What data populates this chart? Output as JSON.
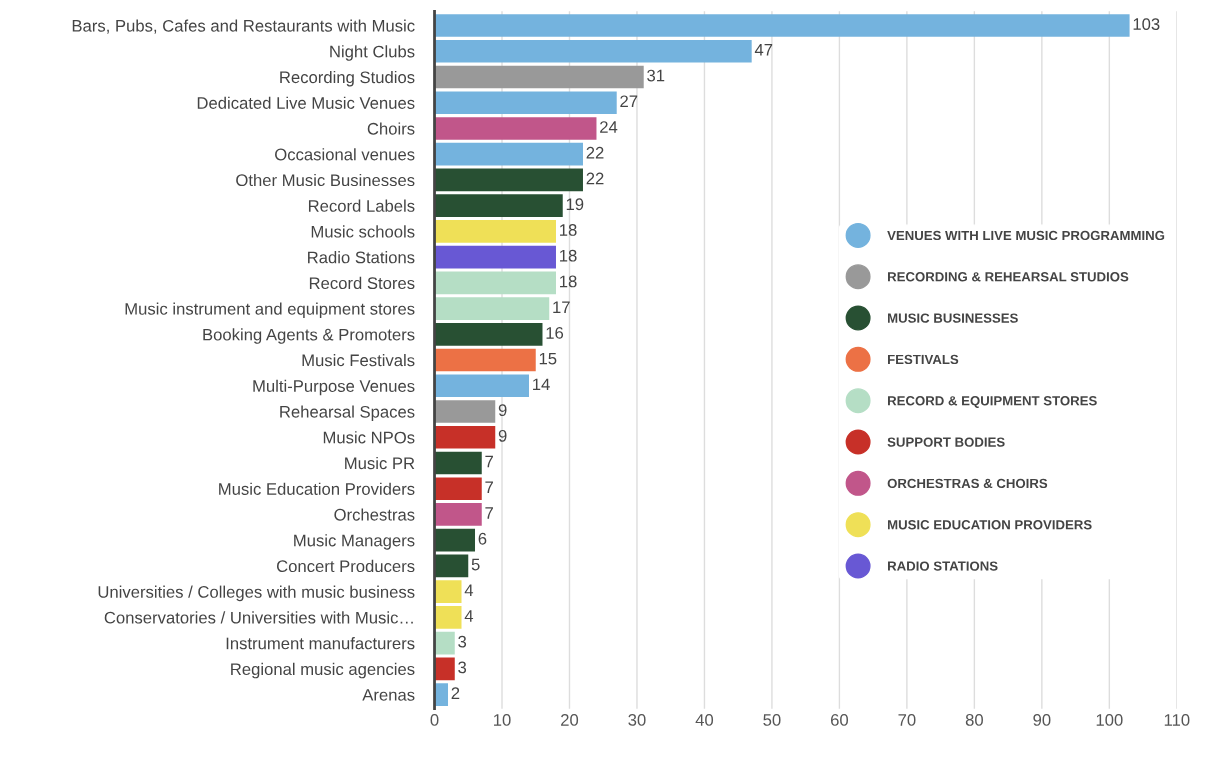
{
  "chart_data": {
    "type": "bar",
    "orientation": "horizontal",
    "categories": [
      "Bars, Pubs, Cafes and Restaurants with Music",
      "Night Clubs",
      "Recording Studios",
      "Dedicated Live Music Venues",
      "Choirs",
      "Occasional venues",
      "Other Music Businesses",
      "Record Labels",
      "Music schools",
      "Radio Stations",
      "Record Stores",
      "Music instrument and equipment stores",
      "Booking Agents & Promoters",
      "Music Festivals",
      "Multi-Purpose Venues",
      "Rehearsal Spaces",
      "Music NPOs",
      "Music PR",
      "Music Education Providers",
      "Orchestras",
      "Music Managers",
      "Concert Producers",
      "Universities / Colleges with music business",
      "Conservatories / Universities with Music…",
      "Instrument manufacturers",
      "Regional music agencies",
      "Arenas"
    ],
    "series": [
      {
        "name": "VENUES WITH LIVE MUSIC PROGRAMMING",
        "color": "#74b3de",
        "values": [
          103,
          47,
          null,
          27,
          null,
          22,
          null,
          null,
          null,
          null,
          null,
          null,
          null,
          null,
          14,
          null,
          null,
          null,
          null,
          null,
          null,
          null,
          null,
          null,
          null,
          null,
          2
        ]
      },
      {
        "name": "RECORDING & REHEARSAL STUDIOS",
        "color": "#999999",
        "values": [
          null,
          null,
          31,
          null,
          null,
          null,
          null,
          null,
          null,
          null,
          null,
          null,
          null,
          null,
          null,
          9,
          null,
          null,
          null,
          null,
          null,
          null,
          null,
          null,
          null,
          null,
          null
        ]
      },
      {
        "name": "MUSIC BUSINESSES",
        "color": "#285033",
        "values": [
          null,
          null,
          null,
          null,
          null,
          null,
          22,
          19,
          null,
          null,
          null,
          null,
          16,
          null,
          null,
          null,
          null,
          7,
          null,
          null,
          6,
          5,
          null,
          null,
          null,
          null,
          null
        ]
      },
      {
        "name": "FESTIVALS",
        "color": "#ec7145",
        "values": [
          null,
          null,
          null,
          null,
          null,
          null,
          null,
          null,
          null,
          null,
          null,
          null,
          null,
          15,
          null,
          null,
          null,
          null,
          null,
          null,
          null,
          null,
          null,
          null,
          null,
          null,
          null
        ]
      },
      {
        "name": "RECORD & EQUIPMENT STORES",
        "color": "#b5dec5",
        "values": [
          null,
          null,
          null,
          null,
          null,
          null,
          null,
          null,
          null,
          null,
          18,
          17,
          null,
          null,
          null,
          null,
          null,
          null,
          null,
          null,
          null,
          null,
          null,
          null,
          3,
          null,
          null
        ]
      },
      {
        "name": "SUPPORT BODIES",
        "color": "#c73028",
        "values": [
          null,
          null,
          null,
          null,
          null,
          null,
          null,
          null,
          null,
          null,
          null,
          null,
          null,
          null,
          null,
          null,
          9,
          null,
          7,
          null,
          null,
          null,
          null,
          null,
          null,
          3,
          null
        ]
      },
      {
        "name": "ORCHESTRAS & CHOIRS",
        "color": "#c1568a",
        "values": [
          null,
          null,
          null,
          null,
          24,
          null,
          null,
          null,
          null,
          null,
          null,
          null,
          null,
          null,
          null,
          null,
          null,
          null,
          null,
          7,
          null,
          null,
          null,
          null,
          null,
          null,
          null
        ]
      },
      {
        "name": "MUSIC EDUCATION PROVIDERS",
        "color": "#efe057",
        "values": [
          null,
          null,
          null,
          null,
          null,
          null,
          null,
          null,
          18,
          null,
          null,
          null,
          null,
          null,
          null,
          null,
          null,
          null,
          null,
          null,
          null,
          null,
          4,
          4,
          null,
          null,
          null
        ]
      },
      {
        "name": "RADIO STATIONS",
        "color": "#6858d4",
        "values": [
          null,
          null,
          null,
          null,
          null,
          null,
          null,
          null,
          null,
          18,
          null,
          null,
          null,
          null,
          null,
          null,
          null,
          null,
          null,
          null,
          null,
          null,
          null,
          null,
          null,
          null,
          null
        ]
      }
    ],
    "xlim": [
      0,
      110
    ],
    "xticks": [
      0,
      10,
      20,
      30,
      40,
      50,
      60,
      70,
      80,
      90,
      100,
      110
    ],
    "grid": "x",
    "legend": "right",
    "data_labels": true
  }
}
